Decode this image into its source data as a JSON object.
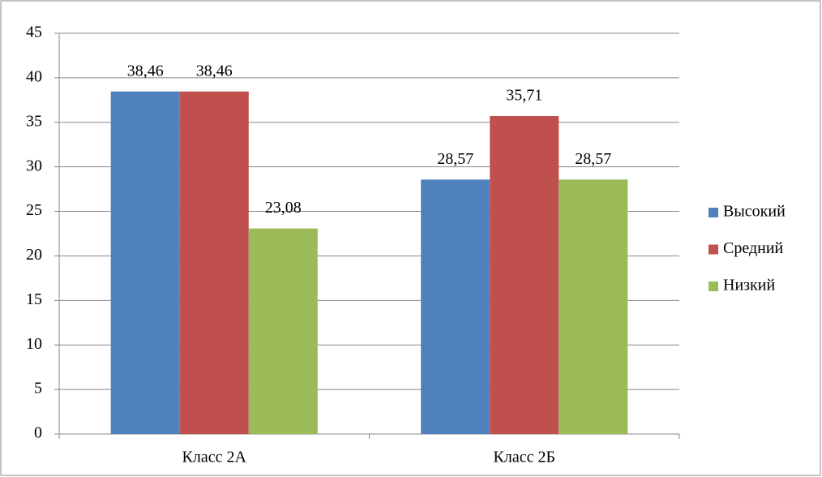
{
  "chart_data": {
    "type": "bar",
    "categories": [
      "Класс 2А",
      "Класс 2Б"
    ],
    "series": [
      {
        "name": "Высокий",
        "color": "#4f81bd",
        "values": [
          38.46,
          28.57
        ],
        "value_labels": [
          "38,46",
          "28,57"
        ]
      },
      {
        "name": "Средний",
        "color": "#c0504d",
        "values": [
          38.46,
          35.71
        ],
        "value_labels": [
          "38,46",
          "35,71"
        ]
      },
      {
        "name": "Низкий",
        "color": "#9bbb59",
        "values": [
          23.08,
          28.57
        ],
        "value_labels": [
          "23,08",
          "28,57"
        ]
      }
    ],
    "ylim": [
      0,
      45
    ],
    "yticks": [
      0,
      5,
      10,
      15,
      20,
      25,
      30,
      35,
      40,
      45
    ],
    "grid": true,
    "legend": "right"
  }
}
